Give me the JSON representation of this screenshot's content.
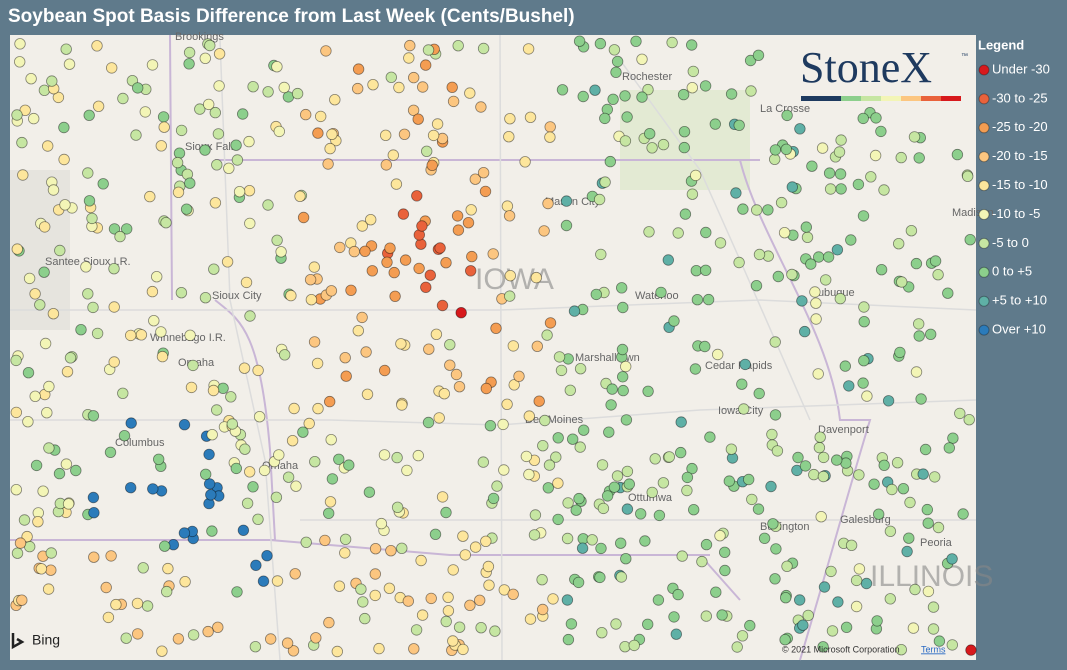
{
  "title": "Soybean Spot Basis Difference from Last Week (Cents/Bushel)",
  "legend": {
    "title": "Legend",
    "items": [
      {
        "label": "Under -30",
        "color": "#d7191c"
      },
      {
        "label": "-30 to -25",
        "color": "#e9623b"
      },
      {
        "label": "-25 to -20",
        "color": "#f49d52"
      },
      {
        "label": "-20 to -15",
        "color": "#fcc680"
      },
      {
        "label": "-15 to -10",
        "color": "#fde69c"
      },
      {
        "label": "-10 to -5",
        "color": "#f3f5b6"
      },
      {
        "label": "-5 to 0",
        "color": "#c6e6a2"
      },
      {
        "label": "0 to +5",
        "color": "#8ccf8c"
      },
      {
        "label": "+5 to +10",
        "color": "#5fb0a6"
      },
      {
        "label": "Over +10",
        "color": "#2b7bba"
      }
    ]
  },
  "logo": {
    "text": "StoneX",
    "mark": "™"
  },
  "map": {
    "places": [
      "Brookings",
      "Rochester",
      "La Crosse",
      "Sioux Falls",
      "Mason City",
      "Madison",
      "Santee Sioux I.R.",
      "IOWA",
      "Sioux City",
      "Waterloo",
      "Dubuque",
      "Winnebago I.R.",
      "Omaha",
      "Marshalltown",
      "Cedar Rapids",
      "Columbus",
      "Iowa City",
      "Davenport",
      "Omaha",
      "Des Moines",
      "Ottumwa",
      "Burlington",
      "Galesburg",
      "Peoria",
      "ILLINOIS"
    ],
    "provider": "Bing",
    "copyright": "© 2021 Microsoft Corporation",
    "terms": "Terms"
  }
}
